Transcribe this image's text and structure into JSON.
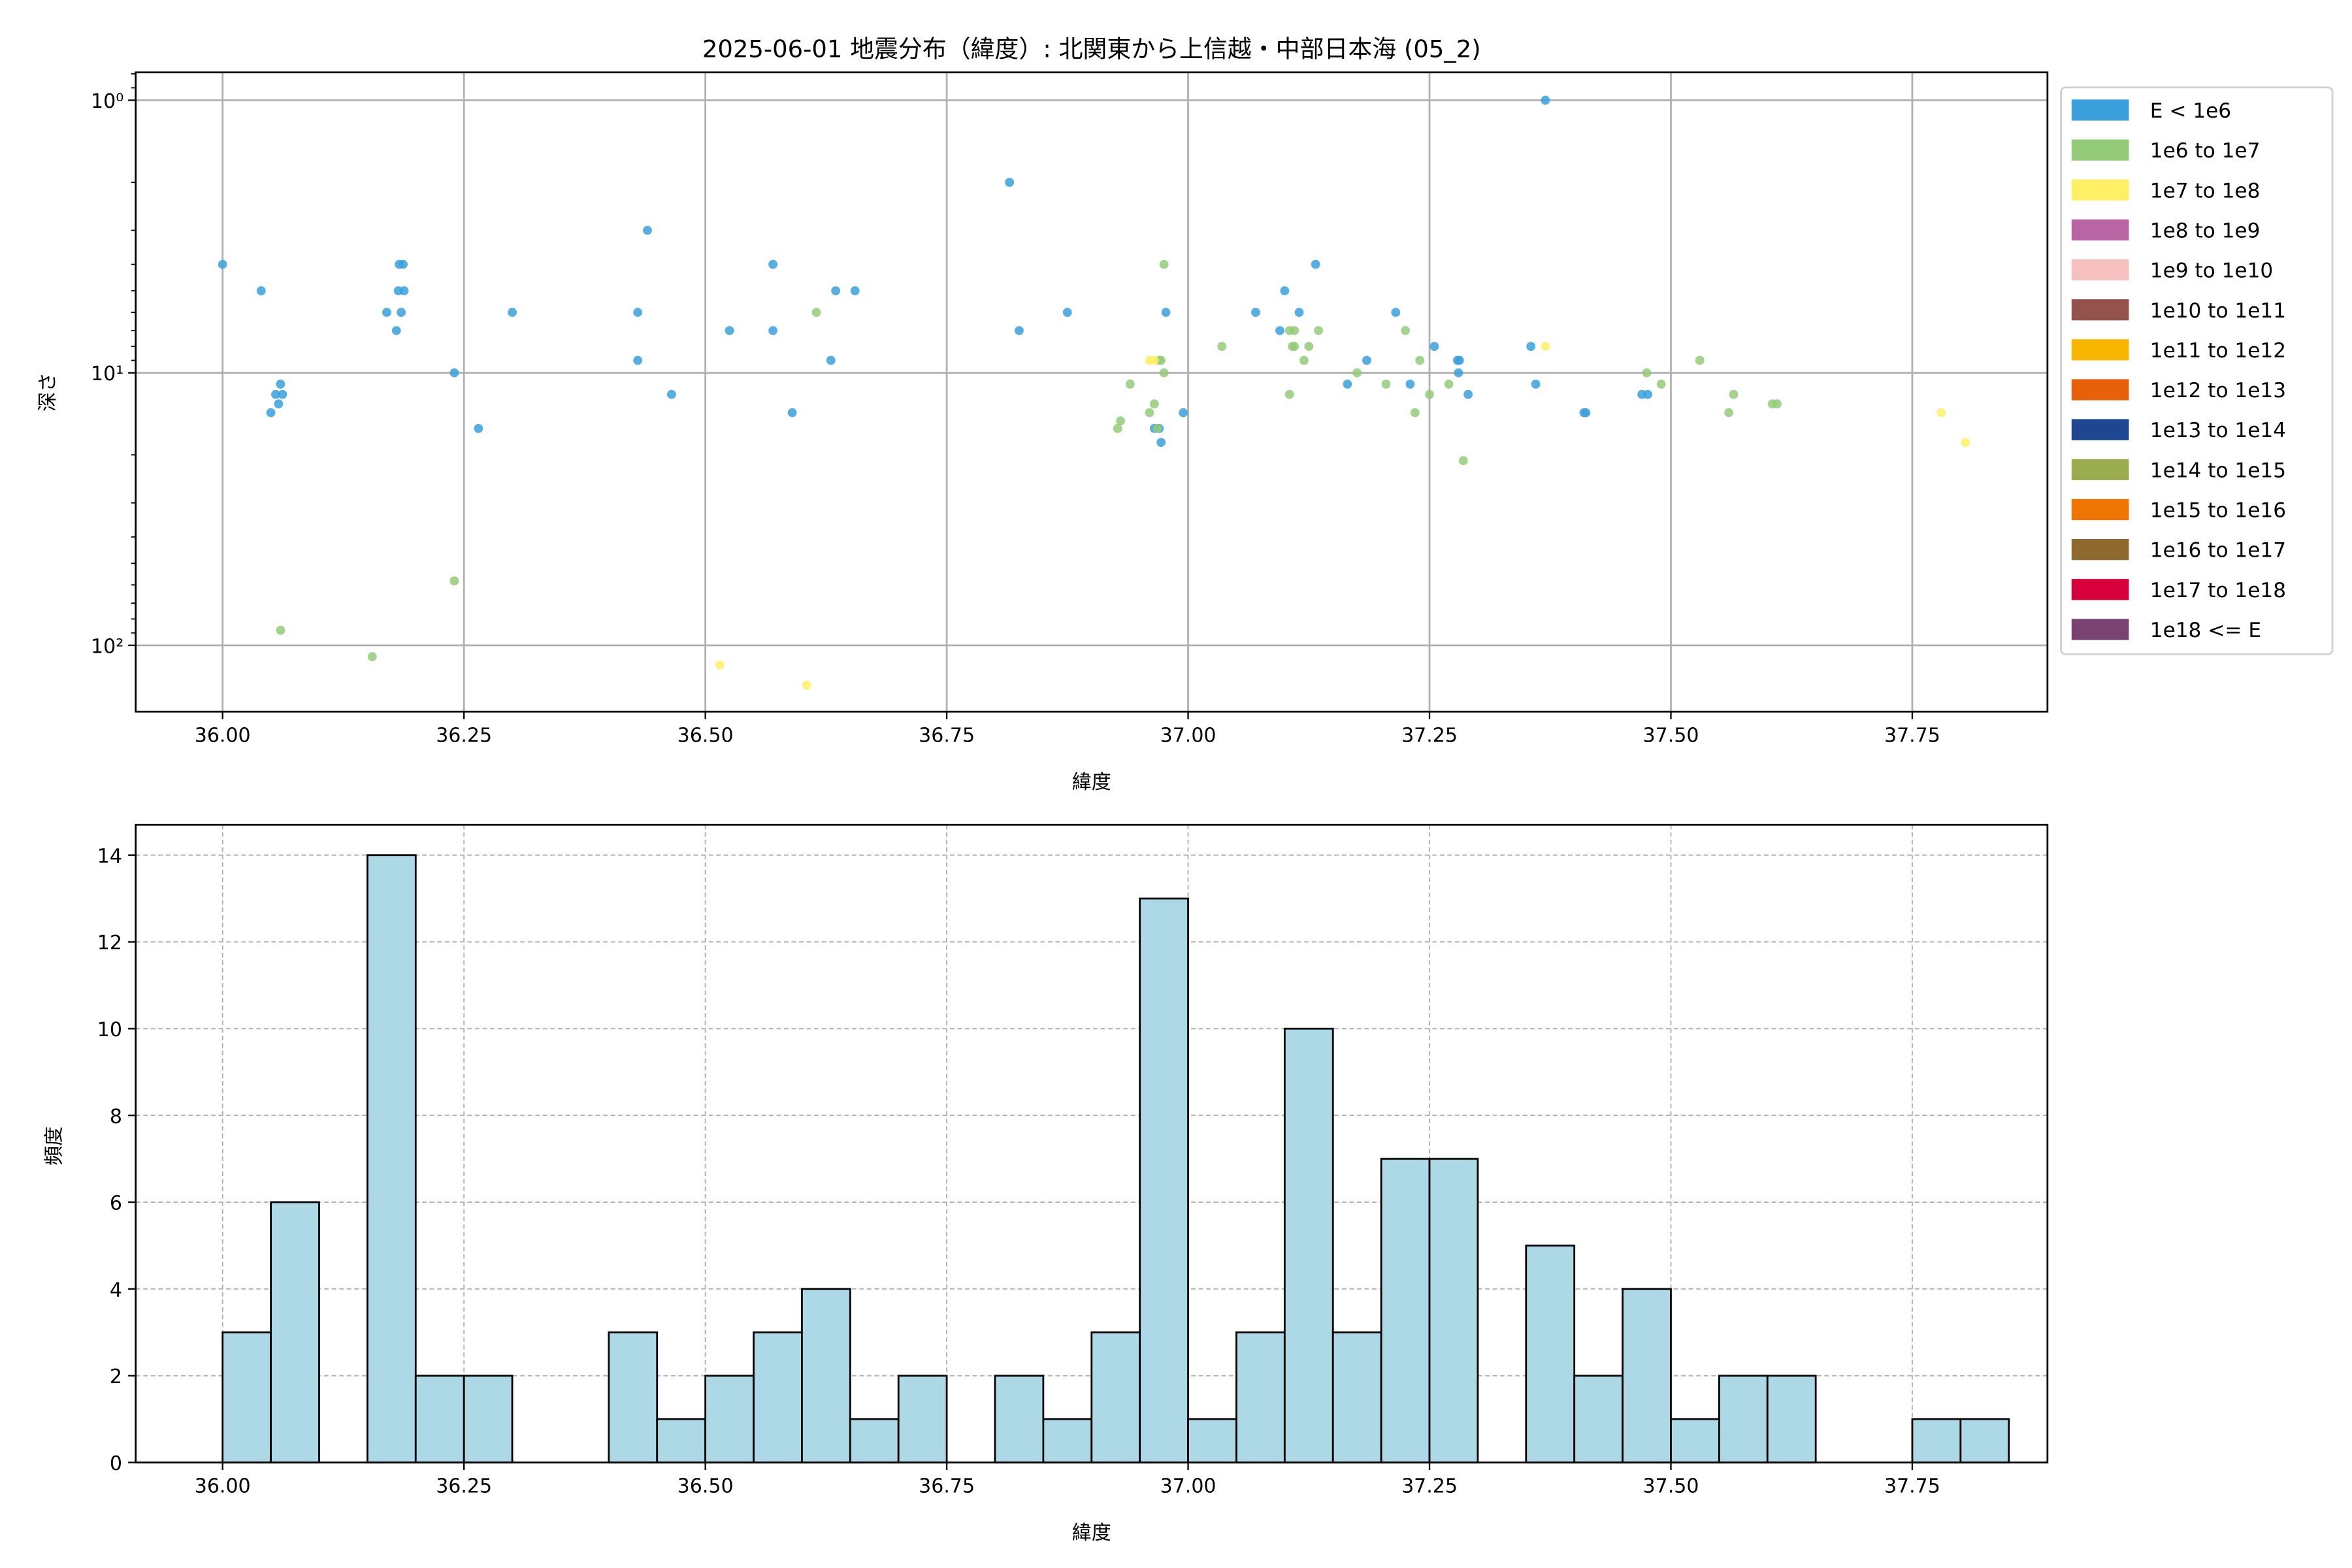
{
  "figure_title": "2025-06-01 地震分布（緯度）: 北関東から上信越・中部日本海 (05_2)",
  "chart_data": [
    {
      "type": "scatter",
      "xlabel": "緯度",
      "ylabel": "深さ",
      "yscale": "log",
      "y_inverted": true,
      "xlim": [
        35.91,
        37.89
      ],
      "ylim": [
        0.79,
        175
      ],
      "grid": true,
      "xticks": [
        {
          "v": 36.0,
          "label": "36.00"
        },
        {
          "v": 36.25,
          "label": "36.25"
        },
        {
          "v": 36.5,
          "label": "36.50"
        },
        {
          "v": 36.75,
          "label": "36.75"
        },
        {
          "v": 37.0,
          "label": "37.00"
        },
        {
          "v": 37.25,
          "label": "37.25"
        },
        {
          "v": 37.5,
          "label": "37.50"
        },
        {
          "v": 37.75,
          "label": "37.75"
        }
      ],
      "yticks": [
        {
          "v": 1,
          "label": "10⁰"
        },
        {
          "v": 10,
          "label": "10¹"
        },
        {
          "v": 100,
          "label": "10²"
        }
      ],
      "legend_position": "outside-right",
      "legend": [
        {
          "label": "E < 1e6",
          "color": "#3aa0dc"
        },
        {
          "label": "1e6 to 1e7",
          "color": "#93cb78"
        },
        {
          "label": "1e7 to 1e8",
          "color": "#fff066"
        },
        {
          "label": "1e8 to 1e9",
          "color": "#b964a3"
        },
        {
          "label": "1e9 to 1e10",
          "color": "#f5c0bd"
        },
        {
          "label": "1e10 to 1e11",
          "color": "#94524d"
        },
        {
          "label": "1e11 to 1e12",
          "color": "#f7b500"
        },
        {
          "label": "1e12 to 1e13",
          "color": "#e9600a"
        },
        {
          "label": "1e13 to 1e14",
          "color": "#1e4791"
        },
        {
          "label": "1e14 to 1e15",
          "color": "#9bac4f"
        },
        {
          "label": "1e15 to 1e16",
          "color": "#ef7602"
        },
        {
          "label": "1e16 to 1e17",
          "color": "#8f6a2e"
        },
        {
          "label": "1e17 to 1e18",
          "color": "#d8003a"
        },
        {
          "label": "1e18 <= E",
          "color": "#7a4270"
        }
      ],
      "points_fields": [
        "latitude",
        "depth",
        "energy_class_index"
      ],
      "points": [
        [
          36.0,
          4.0,
          0
        ],
        [
          36.04,
          5.0,
          0
        ],
        [
          36.183,
          4.0,
          0
        ],
        [
          36.187,
          4.0,
          0
        ],
        [
          36.182,
          5.0,
          0
        ],
        [
          36.188,
          5.0,
          0
        ],
        [
          36.17,
          6.0,
          0
        ],
        [
          36.185,
          6.0,
          0
        ],
        [
          36.18,
          7.0,
          0
        ],
        [
          36.24,
          10,
          0
        ],
        [
          36.06,
          11,
          0
        ],
        [
          36.055,
          12,
          0
        ],
        [
          36.062,
          12,
          0
        ],
        [
          36.058,
          13,
          0
        ],
        [
          36.05,
          14,
          0
        ],
        [
          36.265,
          16,
          0
        ],
        [
          36.3,
          6.0,
          0
        ],
        [
          36.43,
          6.0,
          0
        ],
        [
          36.43,
          9.0,
          0
        ],
        [
          36.44,
          3.0,
          0
        ],
        [
          36.465,
          12,
          0
        ],
        [
          36.525,
          7.0,
          0
        ],
        [
          36.57,
          4.0,
          0
        ],
        [
          36.57,
          7.0,
          0
        ],
        [
          36.59,
          14,
          0
        ],
        [
          36.63,
          9.0,
          0
        ],
        [
          36.635,
          5.0,
          0
        ],
        [
          36.655,
          5.0,
          0
        ],
        [
          36.815,
          2.0,
          0
        ],
        [
          36.825,
          7.0,
          0
        ],
        [
          36.875,
          6.0,
          0
        ],
        [
          36.977,
          6.0,
          0
        ],
        [
          36.972,
          18,
          0
        ],
        [
          36.965,
          16,
          0
        ],
        [
          36.97,
          16,
          0
        ],
        [
          36.995,
          14,
          0
        ],
        [
          37.07,
          6.0,
          0
        ],
        [
          37.1,
          5.0,
          0
        ],
        [
          37.095,
          7.0,
          0
        ],
        [
          37.115,
          6.0,
          0
        ],
        [
          37.132,
          4.0,
          0
        ],
        [
          37.165,
          11,
          0
        ],
        [
          37.185,
          9.0,
          0
        ],
        [
          37.215,
          6.0,
          0
        ],
        [
          37.23,
          11,
          0
        ],
        [
          37.255,
          8.0,
          0
        ],
        [
          37.279,
          9.0,
          0
        ],
        [
          37.281,
          9.0,
          0
        ],
        [
          37.29,
          12,
          0
        ],
        [
          37.37,
          1.0,
          0
        ],
        [
          37.355,
          8.0,
          0
        ],
        [
          37.36,
          11,
          0
        ],
        [
          37.41,
          14,
          0
        ],
        [
          37.412,
          14,
          0
        ],
        [
          37.47,
          12,
          0
        ],
        [
          37.476,
          12,
          0
        ],
        [
          37.28,
          10,
          0
        ],
        [
          36.06,
          88,
          1
        ],
        [
          36.155,
          110,
          1
        ],
        [
          36.24,
          58,
          1
        ],
        [
          36.615,
          6.0,
          1
        ],
        [
          36.975,
          4.0,
          1
        ],
        [
          36.93,
          15,
          1
        ],
        [
          36.927,
          16,
          1
        ],
        [
          36.94,
          11,
          1
        ],
        [
          36.96,
          14,
          1
        ],
        [
          36.965,
          13,
          1
        ],
        [
          36.968,
          16,
          1
        ],
        [
          36.97,
          9.0,
          1
        ],
        [
          36.975,
          10,
          1
        ],
        [
          36.972,
          9.0,
          1
        ],
        [
          37.035,
          8.0,
          1
        ],
        [
          37.105,
          7.0,
          1
        ],
        [
          37.11,
          8.0,
          1
        ],
        [
          37.105,
          12,
          1
        ],
        [
          37.12,
          9.0,
          1
        ],
        [
          37.125,
          8.0,
          1
        ],
        [
          37.135,
          7.0,
          1
        ],
        [
          37.11,
          7.0,
          1
        ],
        [
          37.175,
          10,
          1
        ],
        [
          37.205,
          11,
          1
        ],
        [
          37.225,
          7.0,
          1
        ],
        [
          37.235,
          14,
          1
        ],
        [
          37.24,
          9.0,
          1
        ],
        [
          37.25,
          12,
          1
        ],
        [
          37.27,
          11,
          1
        ],
        [
          37.285,
          21,
          1
        ],
        [
          37.475,
          10,
          1
        ],
        [
          37.49,
          11,
          1
        ],
        [
          37.53,
          9.0,
          1
        ],
        [
          37.56,
          14,
          1
        ],
        [
          37.565,
          12,
          1
        ],
        [
          37.605,
          13,
          1
        ],
        [
          37.61,
          13,
          1
        ],
        [
          37.108,
          8.0,
          1
        ],
        [
          36.515,
          118,
          2
        ],
        [
          36.605,
          140,
          2
        ],
        [
          36.96,
          9.0,
          2
        ],
        [
          36.965,
          9.0,
          2
        ],
        [
          37.37,
          8.0,
          2
        ],
        [
          37.78,
          14,
          2
        ],
        [
          37.805,
          18,
          2
        ]
      ]
    },
    {
      "type": "bar",
      "subtype": "histogram",
      "xlabel": "緯度",
      "ylabel": "頻度",
      "xlim": [
        35.91,
        37.89
      ],
      "ylim": [
        0,
        14.7
      ],
      "grid": true,
      "bar_color": "#add8e6",
      "bin_start": 36.0,
      "bin_width": 0.05,
      "values": [
        3,
        6,
        0,
        14,
        2,
        2,
        0,
        0,
        3,
        1,
        2,
        3,
        4,
        1,
        2,
        0,
        2,
        1,
        3,
        13,
        1,
        3,
        10,
        3,
        7,
        7,
        0,
        5,
        2,
        4,
        1,
        2,
        2,
        0,
        0,
        1,
        1
      ],
      "xticks": [
        {
          "v": 36.0,
          "label": "36.00"
        },
        {
          "v": 36.25,
          "label": "36.25"
        },
        {
          "v": 36.5,
          "label": "36.50"
        },
        {
          "v": 36.75,
          "label": "36.75"
        },
        {
          "v": 37.0,
          "label": "37.00"
        },
        {
          "v": 37.25,
          "label": "37.25"
        },
        {
          "v": 37.5,
          "label": "37.50"
        },
        {
          "v": 37.75,
          "label": "37.75"
        }
      ],
      "yticks": [
        {
          "v": 0,
          "label": "0"
        },
        {
          "v": 2,
          "label": "2"
        },
        {
          "v": 4,
          "label": "4"
        },
        {
          "v": 6,
          "label": "6"
        },
        {
          "v": 8,
          "label": "8"
        },
        {
          "v": 10,
          "label": "10"
        },
        {
          "v": 12,
          "label": "12"
        },
        {
          "v": 14,
          "label": "14"
        }
      ]
    }
  ]
}
